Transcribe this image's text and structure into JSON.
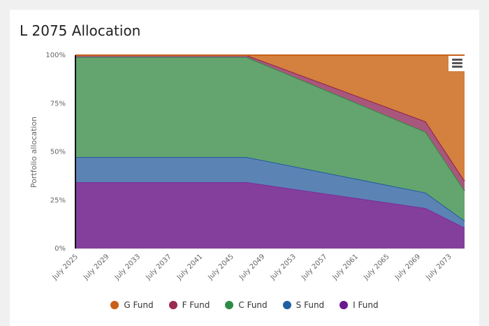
{
  "chart_data": {
    "type": "area",
    "stacked": true,
    "title": "L 2075 Allocation",
    "ylabel": "Portfolio allocation",
    "xlabel": "",
    "ylim": [
      0,
      100
    ],
    "xlim": [
      2025,
      2075
    ],
    "y_ticks": [
      "0%",
      "25%",
      "50%",
      "75%",
      "100%"
    ],
    "y_tick_values": [
      0,
      25,
      50,
      75,
      100
    ],
    "x_ticks": [
      "July 2025",
      "July 2029",
      "July 2033",
      "July 2037",
      "July 2041",
      "July 2045",
      "July 2049",
      "July 2053",
      "July 2057",
      "July 2061",
      "July 2065",
      "July 2069",
      "July 2073"
    ],
    "x_tick_values": [
      2025,
      2029,
      2033,
      2037,
      2041,
      2045,
      2049,
      2053,
      2057,
      2061,
      2065,
      2069,
      2073
    ],
    "x": [
      2025,
      2047,
      2070,
      2075
    ],
    "series": [
      {
        "name": "I Fund",
        "color": "#7b2d9a",
        "fill": "#843f9c",
        "values": [
          34.3,
          34.3,
          20.9,
          10.8
        ]
      },
      {
        "name": "S Fund",
        "color": "#1f5a9e",
        "fill": "#5b84b4",
        "values": [
          13.0,
          13.0,
          8.0,
          3.6
        ]
      },
      {
        "name": "C Fund",
        "color": "#2d8a3e",
        "fill": "#64a56f",
        "values": [
          51.7,
          51.7,
          31.4,
          15.6
        ]
      },
      {
        "name": "F Fund",
        "color": "#8e1f4a",
        "fill": "#a8577c",
        "values": [
          1.0,
          1.0,
          5.4,
          5.0
        ]
      },
      {
        "name": "G Fund",
        "color": "#c9601a",
        "fill": "#d4803f",
        "values": [
          0,
          0,
          34.3,
          65.0
        ]
      }
    ],
    "legend_position": "bottom",
    "legend_order": [
      "G Fund",
      "F Fund",
      "C Fund",
      "S Fund",
      "I Fund"
    ],
    "legend_colors": {
      "G Fund": "#c95f1a",
      "F Fund": "#9a2a4e",
      "C Fund": "#2e8b45",
      "S Fund": "#2160a0",
      "I Fund": "#6a1990"
    },
    "grid": true
  },
  "menu": {
    "icon": "hamburger-menu-icon"
  }
}
